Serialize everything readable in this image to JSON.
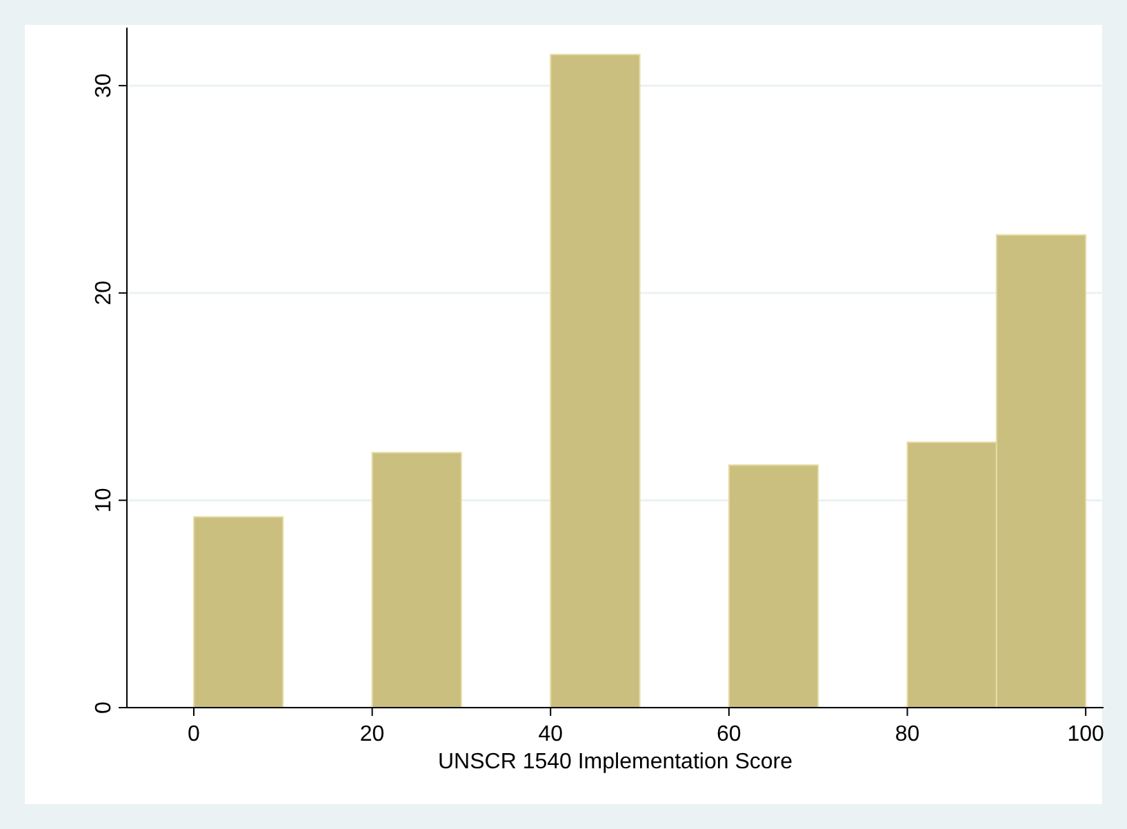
{
  "chart_data": {
    "type": "histogram",
    "xlabel": "UNSCR 1540 Implementation Score",
    "bins": [
      0,
      10,
      20,
      30,
      40,
      50,
      60,
      70,
      80,
      90,
      100
    ],
    "values": [
      9.2,
      0,
      12.3,
      0,
      31.5,
      0,
      11.7,
      0,
      12.8,
      22.8
    ],
    "color": "#cbbf80",
    "xlim": [
      -7.5,
      102
    ],
    "xticks": [
      0,
      20,
      40,
      60,
      80,
      100
    ],
    "ylim": [
      0,
      32.8
    ],
    "yticks": [
      0,
      10,
      20,
      30
    ],
    "grid": "y"
  }
}
